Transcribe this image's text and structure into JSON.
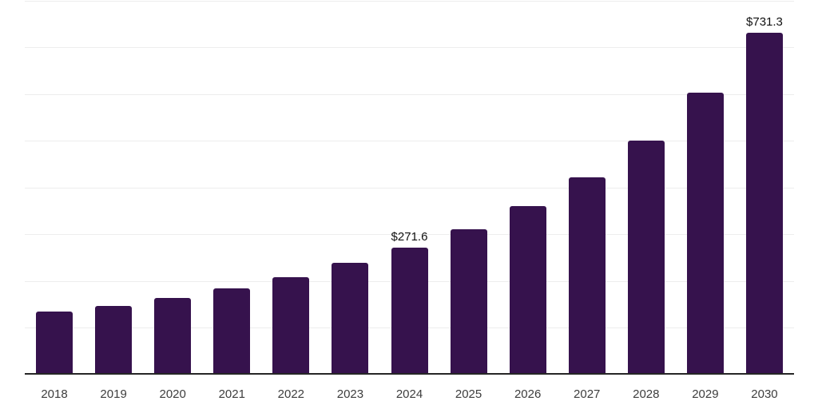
{
  "chart_data": {
    "type": "bar",
    "title": "",
    "xlabel": "",
    "ylabel": "",
    "categories": [
      "2018",
      "2019",
      "2020",
      "2021",
      "2022",
      "2023",
      "2024",
      "2025",
      "2026",
      "2027",
      "2028",
      "2029",
      "2030"
    ],
    "values": [
      135.0,
      147.0,
      164.0,
      184.5,
      208.5,
      239.0,
      271.6,
      311.0,
      360.5,
      422.0,
      501.0,
      603.5,
      731.3
    ],
    "value_labels_shown": {
      "2024": "$271.6",
      "2030": "$731.3"
    },
    "ylim": [
      0,
      800
    ],
    "grid_step": 100,
    "grid": "horizontal-only",
    "legend_position": "none",
    "colors": {
      "bar": "#36124D",
      "axis_line": "#262626",
      "gridline": "#ededed",
      "tick_label": "#3d3d3d",
      "value_label": "#111111",
      "background": "#ffffff"
    }
  }
}
